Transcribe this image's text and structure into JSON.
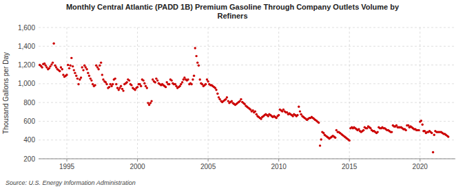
{
  "chart_data": {
    "type": "scatter",
    "title": "Monthly Central Atlantic (PADD 1B) Premium Gasoline Through Company Outlets Volume by\nRefiners",
    "y_label": "Thousand Gallons per Day",
    "source": "Source: U.S. Energy Information Administration",
    "xlim": [
      1993.0,
      2022.5
    ],
    "xticks": [
      1995,
      2000,
      2005,
      2010,
      2015,
      2020
    ],
    "ylim": [
      200,
      1600
    ],
    "yticks": [
      200,
      400,
      600,
      800,
      {
        "value": 1000,
        "label": "1,000"
      },
      {
        "value": 1200,
        "label": "1,200"
      },
      {
        "value": 1400,
        "label": "1,400"
      },
      {
        "value": 1600,
        "label": "1,600"
      }
    ],
    "grid": true,
    "color": "#CC0000",
    "x": [
      1993.08,
      1993.17,
      1993.25,
      1993.33,
      1993.42,
      1993.5,
      1993.58,
      1993.67,
      1993.75,
      1993.83,
      1993.92,
      1994,
      1994.08,
      1994.17,
      1994.25,
      1994.33,
      1994.42,
      1994.5,
      1994.58,
      1994.67,
      1994.75,
      1994.83,
      1994.92,
      1995,
      1995.08,
      1995.17,
      1995.25,
      1995.33,
      1995.42,
      1995.5,
      1995.58,
      1995.67,
      1995.75,
      1995.83,
      1995.92,
      1996,
      1996.08,
      1996.17,
      1996.25,
      1996.33,
      1996.42,
      1996.5,
      1996.58,
      1996.67,
      1996.75,
      1996.83,
      1996.92,
      1997,
      1997.08,
      1997.17,
      1997.25,
      1997.33,
      1997.42,
      1997.5,
      1997.58,
      1997.67,
      1997.75,
      1997.83,
      1997.92,
      1998,
      1998.08,
      1998.17,
      1998.25,
      1998.33,
      1998.42,
      1998.5,
      1998.58,
      1998.67,
      1998.75,
      1998.83,
      1998.92,
      1999,
      1999.08,
      1999.17,
      1999.25,
      1999.33,
      1999.42,
      1999.5,
      1999.58,
      1999.67,
      1999.75,
      1999.83,
      1999.92,
      2000,
      2000.08,
      2000.17,
      2000.25,
      2000.33,
      2000.42,
      2000.5,
      2000.58,
      2000.67,
      2000.75,
      2000.83,
      2000.92,
      2001,
      2001.08,
      2001.17,
      2001.25,
      2001.33,
      2001.42,
      2001.5,
      2001.58,
      2001.67,
      2001.75,
      2001.83,
      2001.92,
      2002,
      2002.08,
      2002.17,
      2002.25,
      2002.33,
      2002.42,
      2002.5,
      2002.58,
      2002.67,
      2002.75,
      2002.83,
      2002.92,
      2003,
      2003.08,
      2003.17,
      2003.25,
      2003.33,
      2003.42,
      2003.5,
      2003.58,
      2003.67,
      2003.75,
      2003.83,
      2003.92,
      2004,
      2004.08,
      2004.17,
      2004.25,
      2004.33,
      2004.42,
      2004.5,
      2004.58,
      2004.67,
      2004.75,
      2004.83,
      2004.92,
      2005,
      2005.08,
      2005.17,
      2005.25,
      2005.33,
      2005.42,
      2005.5,
      2005.58,
      2005.67,
      2005.75,
      2005.83,
      2005.92,
      2006,
      2006.08,
      2006.17,
      2006.25,
      2006.33,
      2006.42,
      2006.5,
      2006.58,
      2006.67,
      2006.75,
      2006.83,
      2006.92,
      2007,
      2007.08,
      2007.17,
      2007.25,
      2007.33,
      2007.42,
      2007.5,
      2007.58,
      2007.67,
      2007.75,
      2007.83,
      2007.92,
      2008,
      2008.08,
      2008.17,
      2008.25,
      2008.33,
      2008.42,
      2008.5,
      2008.58,
      2008.67,
      2008.75,
      2008.83,
      2008.92,
      2009,
      2009.08,
      2009.17,
      2009.25,
      2009.33,
      2009.42,
      2009.5,
      2009.58,
      2009.67,
      2009.75,
      2009.83,
      2009.92,
      2010,
      2010.08,
      2010.17,
      2010.25,
      2010.33,
      2010.42,
      2010.5,
      2010.58,
      2010.67,
      2010.75,
      2010.83,
      2010.92,
      2011,
      2011.08,
      2011.17,
      2011.25,
      2011.33,
      2011.42,
      2011.5,
      2011.58,
      2011.67,
      2011.75,
      2011.83,
      2011.92,
      2012,
      2012.08,
      2012.17,
      2012.25,
      2012.33,
      2012.42,
      2012.5,
      2012.58,
      2012.67,
      2012.75,
      2012.83,
      2012.92,
      2013,
      2013.08,
      2013.17,
      2013.25,
      2013.33,
      2013.42,
      2013.5,
      2013.58,
      2013.67,
      2013.75,
      2013.83,
      2013.92,
      2014,
      2014.08,
      2014.17,
      2014.25,
      2014.33,
      2014.42,
      2014.5,
      2014.58,
      2014.67,
      2014.75,
      2014.83,
      2014.92,
      2015,
      2015.08,
      2015.17,
      2015.25,
      2015.33,
      2015.42,
      2015.5,
      2015.58,
      2015.67,
      2015.75,
      2015.83,
      2015.92,
      2016,
      2016.08,
      2016.17,
      2016.25,
      2016.33,
      2016.42,
      2016.5,
      2016.58,
      2016.67,
      2016.75,
      2016.83,
      2016.92,
      2017,
      2017.08,
      2017.17,
      2017.25,
      2017.33,
      2017.42,
      2017.5,
      2017.58,
      2017.67,
      2017.75,
      2017.83,
      2017.92,
      2018,
      2018.08,
      2018.17,
      2018.25,
      2018.33,
      2018.42,
      2018.5,
      2018.58,
      2018.67,
      2018.75,
      2018.83,
      2018.92,
      2019,
      2019.08,
      2019.17,
      2019.25,
      2019.33,
      2019.42,
      2019.5,
      2019.58,
      2019.67,
      2019.75,
      2019.83,
      2019.92,
      2020,
      2020.08,
      2020.17,
      2020.25,
      2020.33,
      2020.42,
      2020.5,
      2020.58,
      2020.67,
      2020.75,
      2020.83,
      2020.92,
      2021,
      2021.08,
      2021.17,
      2021.25,
      2021.33,
      2021.42,
      2021.5,
      2021.58,
      2021.67,
      2021.75,
      2021.83,
      2021.92,
      2022
    ],
    "values": [
      1200,
      1190,
      1175,
      1210,
      1215,
      1195,
      1175,
      1155,
      1165,
      1185,
      1205,
      1225,
      1430,
      1195,
      1175,
      1155,
      1145,
      1135,
      1175,
      1155,
      1095,
      1075,
      1085,
      1095,
      1200,
      1165,
      1195,
      1275,
      1185,
      1145,
      1115,
      1085,
      1055,
      995,
      1045,
      1065,
      1175,
      1145,
      1195,
      1175,
      1155,
      1115,
      1085,
      1055,
      1035,
      995,
      975,
      985,
      1195,
      1175,
      1155,
      1195,
      1225,
      1095,
      1045,
      1025,
      1015,
      995,
      955,
      965,
      995,
      975,
      995,
      1045,
      1055,
      995,
      955,
      935,
      955,
      975,
      945,
      925,
      995,
      1005,
      1015,
      1045,
      1035,
      995,
      985,
      955,
      945,
      935,
      955,
      965,
      995,
      995,
      975,
      1045,
      1035,
      1005,
      975,
      955,
      795,
      775,
      795,
      815,
      1045,
      1025,
      1015,
      1055,
      1035,
      1005,
      995,
      985,
      995,
      985,
      975,
      965,
      1015,
      995,
      995,
      1045,
      1035,
      1005,
      995,
      995,
      975,
      955,
      965,
      975,
      995,
      1015,
      1045,
      1065,
      1045,
      1035,
      1045,
      995,
      1005,
      995,
      1045,
      1085,
      1380,
      1295,
      1225,
      1195,
      1045,
      1005,
      995,
      975,
      985,
      995,
      1045,
      1025,
      995,
      985,
      985,
      975,
      965,
      955,
      935,
      895,
      855,
      835,
      815,
      805,
      815,
      825,
      835,
      855,
      815,
      795,
      805,
      815,
      795,
      785,
      775,
      785,
      795,
      805,
      815,
      835,
      805,
      795,
      785,
      765,
      755,
      745,
      735,
      725,
      705,
      715,
      695,
      705,
      675,
      655,
      645,
      635,
      625,
      645,
      655,
      665,
      675,
      665,
      655,
      675,
      665,
      655,
      645,
      655,
      645,
      635,
      655,
      665,
      725,
      715,
      705,
      725,
      705,
      695,
      695,
      675,
      685,
      675,
      665,
      655,
      675,
      665,
      655,
      665,
      755,
      705,
      675,
      655,
      645,
      635,
      625,
      615,
      625,
      635,
      635,
      645,
      635,
      625,
      615,
      605,
      595,
      585,
      340,
      405,
      485,
      475,
      455,
      445,
      435,
      425,
      415,
      425,
      435,
      445,
      435,
      425,
      505,
      485,
      485,
      475,
      465,
      455,
      445,
      435,
      425,
      415,
      405,
      395,
      525,
      535,
      525,
      535,
      525,
      515,
      505,
      515,
      495,
      485,
      495,
      505,
      535,
      525,
      525,
      545,
      535,
      525,
      505,
      495,
      495,
      485,
      475,
      485,
      535,
      525,
      525,
      535,
      525,
      525,
      515,
      505,
      505,
      495,
      485,
      485,
      555,
      545,
      545,
      555,
      535,
      535,
      535,
      535,
      525,
      515,
      515,
      505,
      555,
      555,
      535,
      545,
      535,
      525,
      515,
      515,
      505,
      505,
      505,
      595,
      605,
      565,
      495,
      495,
      475,
      485,
      485,
      495,
      485,
      475,
      270,
      455,
      495,
      485,
      485,
      485,
      485,
      485,
      475,
      465,
      465,
      455,
      445,
      435
    ]
  }
}
